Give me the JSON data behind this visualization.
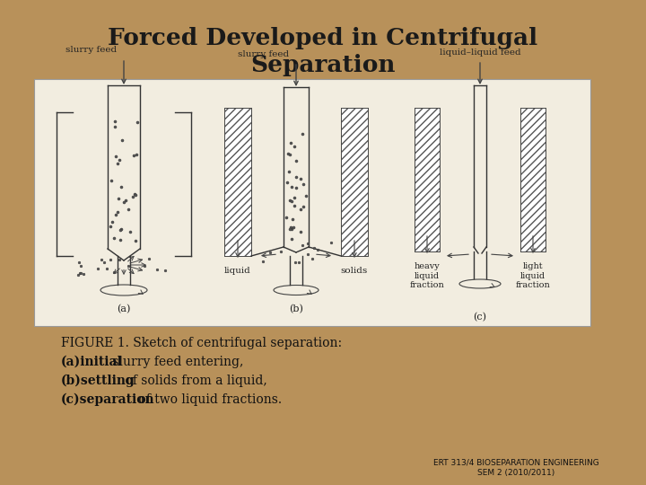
{
  "title_line1": "Forced Developed in Centrifugal",
  "title_line2": "Separation",
  "title_color": "#1a1a1a",
  "background_color": "#b8915a",
  "white_box_color": "#f2ede0",
  "figure_caption_line1": "FIGURE 1. Sketch of centrifugal separation:",
  "figure_caption_line2_bold": "(a)initial",
  "figure_caption_line2_rest": " slurry feed entering,",
  "figure_caption_line3_bold": "(b)settling",
  "figure_caption_line3_rest": " of solids from a liquid,",
  "figure_caption_line4_bold": "(c)separation",
  "figure_caption_line4_rest": " of two liquid fractions.",
  "footer_line1": "ERT 313/4 BIOSEPARATION ENGINEERING",
  "footer_line2": "SEM 2 (2010/2011)"
}
